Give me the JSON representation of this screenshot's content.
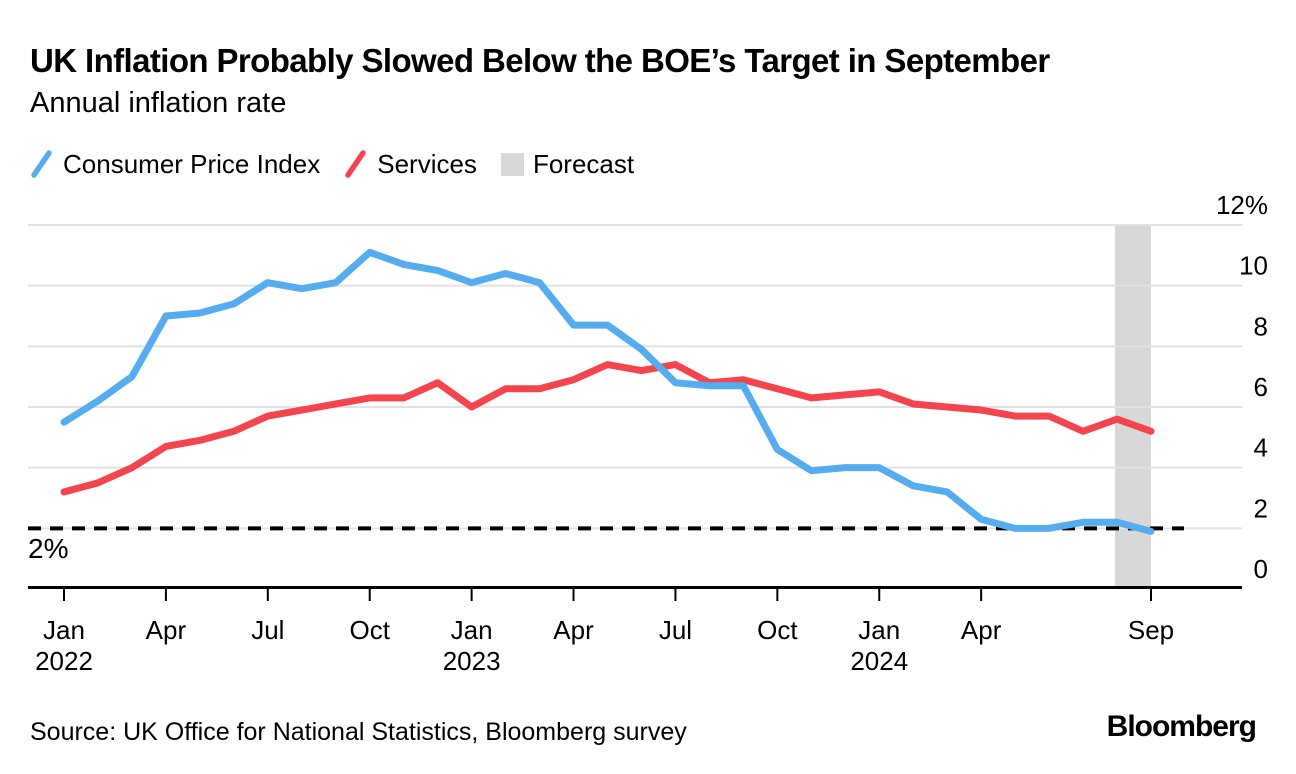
{
  "header": {
    "title": "UK Inflation Probably Slowed Below the BOE’s Target in September",
    "subtitle": "Annual inflation rate"
  },
  "legend": [
    {
      "label": "Consumer Price Index",
      "color": "#55ACEE",
      "swatch": "line"
    },
    {
      "label": "Services",
      "color": "#F4444E",
      "swatch": "line"
    },
    {
      "label": "Forecast",
      "color": "#D8D8D8",
      "swatch": "box"
    }
  ],
  "footer": {
    "source": "Source: UK Office for National Statistics, Bloomberg survey",
    "brand": "Bloomberg"
  },
  "chart_data": {
    "type": "line",
    "title": "UK Inflation Probably Slowed Below the BOE’s Target in September",
    "subtitle": "Annual inflation rate",
    "unit": "%",
    "ylim": [
      0,
      12
    ],
    "grid": true,
    "legend_position": "top",
    "y_axis": {
      "side": "right",
      "ticks": [
        {
          "value": 12,
          "label": "12%"
        },
        {
          "value": 10,
          "label": "10"
        },
        {
          "value": 8,
          "label": "8"
        },
        {
          "value": 6,
          "label": "6"
        },
        {
          "value": 4,
          "label": "4"
        },
        {
          "value": 2,
          "label": "2"
        },
        {
          "value": 0,
          "label": "0"
        }
      ]
    },
    "x_axis": {
      "ticks": [
        {
          "month_index": 0,
          "label": "Jan",
          "year": "2022"
        },
        {
          "month_index": 3,
          "label": "Apr"
        },
        {
          "month_index": 6,
          "label": "Jul"
        },
        {
          "month_index": 9,
          "label": "Oct"
        },
        {
          "month_index": 12,
          "label": "Jan",
          "year": "2023"
        },
        {
          "month_index": 15,
          "label": "Apr"
        },
        {
          "month_index": 18,
          "label": "Jul"
        },
        {
          "month_index": 21,
          "label": "Oct"
        },
        {
          "month_index": 24,
          "label": "Jan",
          "year": "2024"
        },
        {
          "month_index": 27,
          "label": "Apr"
        },
        {
          "month_index": 32,
          "label": "Sep"
        }
      ]
    },
    "categories": [
      "Jan 2022",
      "Feb 2022",
      "Mar 2022",
      "Apr 2022",
      "May 2022",
      "Jun 2022",
      "Jul 2022",
      "Aug 2022",
      "Sep 2022",
      "Oct 2022",
      "Nov 2022",
      "Dec 2022",
      "Jan 2023",
      "Feb 2023",
      "Mar 2023",
      "Apr 2023",
      "May 2023",
      "Jun 2023",
      "Jul 2023",
      "Aug 2023",
      "Sep 2023",
      "Oct 2023",
      "Nov 2023",
      "Dec 2023",
      "Jan 2024",
      "Feb 2024",
      "Mar 2024",
      "Apr 2024",
      "May 2024",
      "Jun 2024",
      "Jul 2024",
      "Aug 2024",
      "Sep 2024"
    ],
    "series": [
      {
        "name": "Consumer Price Index",
        "color": "#55ACEE",
        "values": [
          5.5,
          6.2,
          7.0,
          9.0,
          9.1,
          9.4,
          10.1,
          9.9,
          10.1,
          11.1,
          10.7,
          10.5,
          10.1,
          10.4,
          10.1,
          8.7,
          8.7,
          7.9,
          6.8,
          6.7,
          6.7,
          4.6,
          3.9,
          4.0,
          4.0,
          3.4,
          3.2,
          2.3,
          2.0,
          2.0,
          2.2,
          2.2,
          1.9
        ]
      },
      {
        "name": "Services",
        "color": "#F4444E",
        "values": [
          3.2,
          3.5,
          4.0,
          4.7,
          4.9,
          5.2,
          5.7,
          5.9,
          6.1,
          6.3,
          6.3,
          6.8,
          6.0,
          6.6,
          6.6,
          6.9,
          7.4,
          7.2,
          7.4,
          6.8,
          6.9,
          6.6,
          6.3,
          6.4,
          6.5,
          6.1,
          6.0,
          5.9,
          5.7,
          5.7,
          5.2,
          5.6,
          5.2
        ]
      }
    ],
    "target_line": {
      "value": 2,
      "label": "2%",
      "style": "dashed",
      "color": "#000000"
    },
    "forecast_band": {
      "start_month_index": 31,
      "end_month_index": 32,
      "color": "#D8D8D8",
      "label": "Forecast"
    },
    "gridline_color": "#E2E2E2"
  }
}
